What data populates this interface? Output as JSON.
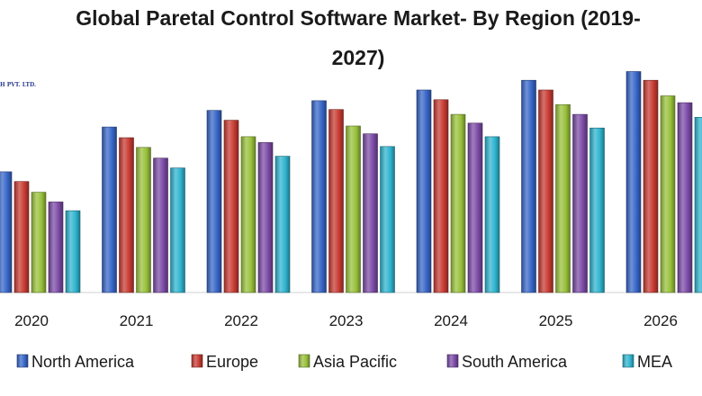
{
  "title_line1": "Global Paretal Control Software Market- By Region (2019-",
  "title_line2": "2027)",
  "watermark": "H PVT. LTD.",
  "chart_data": {
    "type": "bar",
    "title": "Global Paretal Control Software Market- By Region (2019-2027)",
    "categories": [
      "2020",
      "2021",
      "2022",
      "2023",
      "2024",
      "2025",
      "2026"
    ],
    "series": [
      {
        "name": "North America",
        "color": "#3766c8",
        "values": [
          12.4,
          17.0,
          18.7,
          19.7,
          20.8,
          21.8,
          22.7
        ]
      },
      {
        "name": "Europe",
        "color": "#c83a32",
        "values": [
          11.4,
          15.9,
          17.7,
          18.8,
          19.8,
          20.8,
          21.8
        ]
      },
      {
        "name": "Asia Pacific",
        "color": "#98c03a",
        "values": [
          10.3,
          14.9,
          16.0,
          17.1,
          18.3,
          19.3,
          20.2
        ]
      },
      {
        "name": "South America",
        "color": "#7b4aa6",
        "values": [
          9.3,
          13.8,
          15.4,
          16.3,
          17.4,
          18.3,
          19.5
        ]
      },
      {
        "name": "MEA",
        "color": "#2fb4cf",
        "values": [
          8.4,
          12.8,
          14.0,
          15.0,
          16.0,
          16.9,
          18.0
        ]
      }
    ],
    "ylim": [
      0,
      24.5
    ],
    "grid": false,
    "legend": "bottom"
  }
}
